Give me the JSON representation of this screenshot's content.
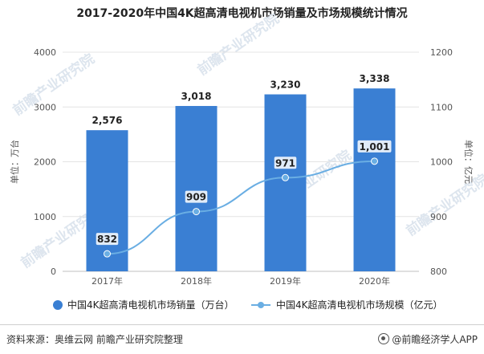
{
  "title": "2017-2020年中国4K超高清电视机市场销量及市场规模统计情况",
  "watermark": "前瞻产业研究院",
  "footer": {
    "source": "资料来源：奥维云网 前瞻产业研究院整理",
    "brand": "@前瞻经济学人APP"
  },
  "colors": {
    "bar": "#3a7fd3",
    "line": "#6aaee3",
    "grid": "#e4e4e4",
    "text": "#333333"
  },
  "chart_data": {
    "type": "bar",
    "categories": [
      "2017年",
      "2018年",
      "2019年",
      "2020年"
    ],
    "series": [
      {
        "name": "中国4K超高清电视机市场销量（万台）",
        "type": "bar",
        "axis": "left",
        "values": [
          2576,
          3018,
          3230,
          3338
        ],
        "labels": [
          "2,576",
          "3,018",
          "3,230",
          "3,338"
        ]
      },
      {
        "name": "中国4K超高清电视机市场规模（亿元）",
        "type": "line",
        "axis": "right",
        "values": [
          832,
          909,
          971,
          1001
        ],
        "labels": [
          "832",
          "909",
          "971",
          "1,001"
        ]
      }
    ],
    "ylabel_left": "单位：万台",
    "ylabel_right": "单位：亿元",
    "ylim_left": [
      0,
      4000
    ],
    "ylim_right": [
      800,
      1200
    ],
    "yticks_left": [
      "0",
      "1000",
      "2000",
      "3000",
      "4000"
    ],
    "yticks_right": [
      "800",
      "900",
      "1000",
      "1100",
      "1200"
    ],
    "grid": true,
    "legend_position": "bottom"
  }
}
